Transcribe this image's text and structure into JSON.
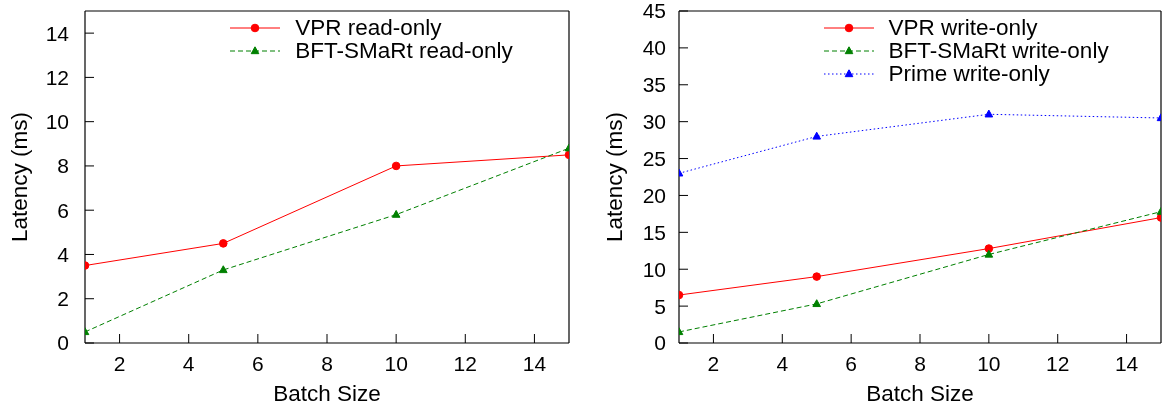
{
  "chart_data": [
    {
      "type": "line",
      "xlabel": "Batch Size",
      "ylabel": "Latency (ms)",
      "x": [
        1,
        5,
        10,
        15
      ],
      "xlim": [
        1,
        15
      ],
      "xticks": [
        2,
        4,
        6,
        8,
        10,
        12,
        14
      ],
      "ylim": [
        0,
        15
      ],
      "yticks": [
        0,
        2,
        4,
        6,
        8,
        10,
        12,
        14
      ],
      "legend": "top",
      "series": [
        {
          "name": "VPR read-only",
          "color": "#ff0000",
          "marker": "circle",
          "line_style": "solid",
          "values": [
            3.5,
            4.5,
            8,
            8.5
          ]
        },
        {
          "name": "BFT-SMaRt read-only",
          "color": "#008000",
          "marker": "triangle",
          "line_style": "dashed",
          "values": [
            0.5,
            3.3,
            5.8,
            8.8
          ]
        }
      ]
    },
    {
      "type": "line",
      "xlabel": "Batch Size",
      "ylabel": "Latency (ms)",
      "x": [
        1,
        5,
        10,
        15
      ],
      "xlim": [
        1,
        15
      ],
      "xticks": [
        2,
        4,
        6,
        8,
        10,
        12,
        14
      ],
      "ylim": [
        0,
        45
      ],
      "yticks": [
        0,
        5,
        10,
        15,
        20,
        25,
        30,
        35,
        40,
        45
      ],
      "legend": "top",
      "series": [
        {
          "name": "VPR write-only",
          "color": "#ff0000",
          "marker": "circle",
          "line_style": "solid",
          "values": [
            6.5,
            9,
            12.8,
            17
          ]
        },
        {
          "name": "BFT-SMaRt write-only",
          "color": "#008000",
          "marker": "triangle",
          "line_style": "dashed",
          "values": [
            1.5,
            5.3,
            12,
            17.8
          ]
        },
        {
          "name": "Prime write-only",
          "color": "#0000ff",
          "marker": "triangle",
          "line_style": "dotted",
          "values": [
            23,
            28,
            31,
            30.5
          ]
        }
      ]
    }
  ]
}
